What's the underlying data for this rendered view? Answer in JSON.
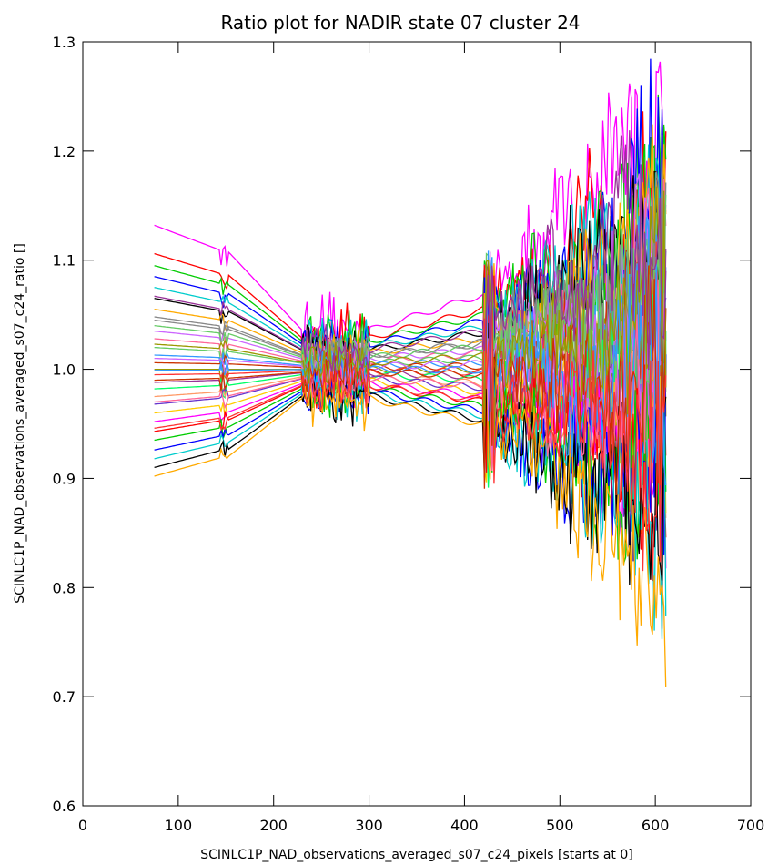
{
  "chart_data": {
    "type": "line",
    "title": "Ratio plot for NADIR state 07 cluster 24",
    "xlabel": "SCINLC1P_NAD_observations_averaged_s07_c24_pixels [starts at 0]",
    "ylabel": "SCINLC1P_NAD_observations_averaged_s07_c24_ratio []",
    "xlim": [
      0,
      700
    ],
    "ylim": [
      0.6,
      1.3
    ],
    "x_ticks": [
      "0",
      "100",
      "200",
      "300",
      "400",
      "500",
      "600",
      "700"
    ],
    "y_ticks": [
      "0.6",
      "0.7",
      "0.8",
      "0.9",
      "1.0",
      "1.1",
      "1.2",
      "1.3"
    ],
    "grid": false,
    "legend": "none",
    "series_colors": [
      "#ff00ff",
      "#ff0000",
      "#00cc00",
      "#0000ff",
      "#00cccc",
      "#000000",
      "#ffaa00",
      "#888888",
      "#cc66ff",
      "#ff6699",
      "#66cc66",
      "#3399ff",
      "#cc3300",
      "#999900",
      "#ff3333",
      "#993399",
      "#00ff66",
      "#ff9966",
      "#6633cc",
      "#ffcc00"
    ],
    "series_start_values": [
      1.132,
      1.106,
      1.095,
      1.085,
      1.075,
      1.065,
      1.055,
      1.045,
      1.035,
      1.028,
      1.02,
      1.013,
      1.006,
      1.0,
      0.995,
      0.988,
      0.982,
      0.975,
      0.968,
      0.96,
      0.952,
      0.943,
      0.935,
      0.926,
      0.918,
      0.91,
      0.902,
      1.048,
      1.01,
      0.97,
      1.04,
      0.999,
      0.99,
      1.023,
      0.946,
      1.067
    ]
  }
}
